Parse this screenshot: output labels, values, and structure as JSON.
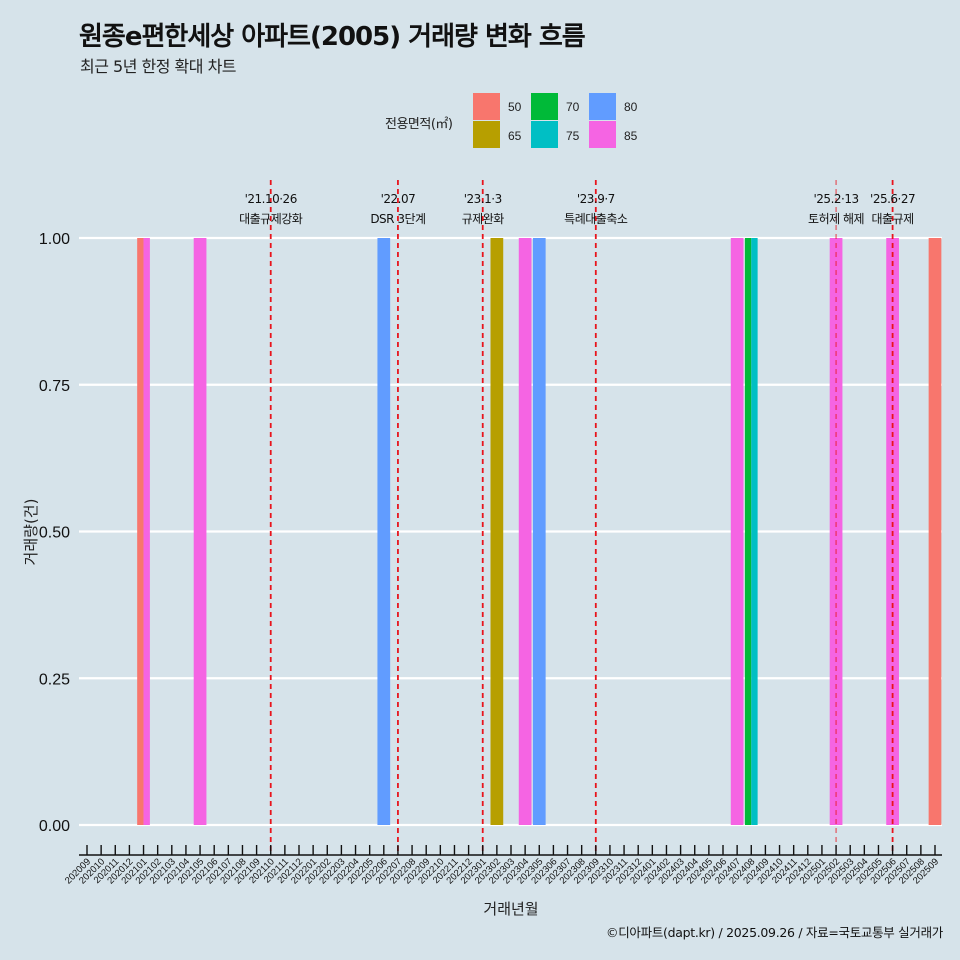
{
  "title": "원종e편한세상 아파트(2005) 거래량 변화 흐름",
  "subtitle": "최근 5년 한정 확대 차트",
  "caption": "©디아파트(dapt.kr) / 2025.09.26 / 자료=국토교통부 실거래가",
  "legend": {
    "title": "전용면적(㎡)",
    "items": [
      {
        "label": "50",
        "color": "#F8766D"
      },
      {
        "label": "65",
        "color": "#B79F00"
      },
      {
        "label": "70",
        "color": "#00BA38"
      },
      {
        "label": "75",
        "color": "#00BFC4"
      },
      {
        "label": "80",
        "color": "#619CFF"
      },
      {
        "label": "85",
        "color": "#F564E3"
      }
    ]
  },
  "chart_data": {
    "type": "bar",
    "title": "원종e편한세상 아파트(2005) 거래량 변화 흐름",
    "subtitle": "최근 5년 한정 확대 차트",
    "xlabel": "거래년월",
    "ylabel": "거래량(건)",
    "ylim": [
      0,
      1
    ],
    "yticks": [
      "0.00",
      "0.25",
      "0.50",
      "0.75",
      "1.00"
    ],
    "ytick_values": [
      0,
      0.25,
      0.5,
      0.75,
      1.0
    ],
    "grid": "horizontal",
    "legend_position": "top",
    "categories": [
      "202009",
      "202010",
      "202011",
      "202012",
      "202101",
      "202102",
      "202103",
      "202104",
      "202105",
      "202106",
      "202107",
      "202108",
      "202109",
      "202110",
      "202111",
      "202112",
      "202201",
      "202202",
      "202203",
      "202204",
      "202205",
      "202206",
      "202207",
      "202208",
      "202209",
      "202210",
      "202211",
      "202212",
      "202301",
      "202302",
      "202303",
      "202304",
      "202305",
      "202306",
      "202307",
      "202308",
      "202309",
      "202310",
      "202311",
      "202312",
      "202401",
      "202402",
      "202403",
      "202404",
      "202405",
      "202406",
      "202407",
      "202408",
      "202409",
      "202410",
      "202411",
      "202412",
      "202501",
      "202502",
      "202503",
      "202504",
      "202505",
      "202506",
      "202507",
      "202508",
      "202509"
    ],
    "bars": [
      {
        "month": "202101",
        "groups": [
          {
            "area": "50",
            "value": 1
          },
          {
            "area": "85",
            "value": 1
          }
        ]
      },
      {
        "month": "202105",
        "groups": [
          {
            "area": "85",
            "value": 1
          }
        ]
      },
      {
        "month": "202206",
        "groups": [
          {
            "area": "80",
            "value": 1
          }
        ]
      },
      {
        "month": "202302",
        "groups": [
          {
            "area": "65",
            "value": 1
          }
        ]
      },
      {
        "month": "202304",
        "groups": [
          {
            "area": "85",
            "value": 1
          }
        ]
      },
      {
        "month": "202305",
        "groups": [
          {
            "area": "80",
            "value": 1
          }
        ]
      },
      {
        "month": "202407",
        "groups": [
          {
            "area": "85",
            "value": 1
          }
        ]
      },
      {
        "month": "202408",
        "groups": [
          {
            "area": "70",
            "value": 1
          },
          {
            "area": "75",
            "value": 1
          }
        ]
      },
      {
        "month": "202502",
        "groups": [
          {
            "area": "85",
            "value": 1
          }
        ]
      },
      {
        "month": "202506",
        "groups": [
          {
            "area": "85",
            "value": 1
          }
        ]
      },
      {
        "month": "202509",
        "groups": [
          {
            "area": "50",
            "value": 1
          }
        ]
      }
    ],
    "annotations": [
      {
        "month": "202110",
        "date": "'21.10·26",
        "label": "대출규제강화",
        "style": "bold"
      },
      {
        "month": "202207",
        "date": "'22.07",
        "label": "DSR 3단계",
        "style": "bold"
      },
      {
        "month": "202301",
        "date": "'23.1·3",
        "label": "규제완화",
        "style": "bold"
      },
      {
        "month": "202309",
        "date": "'23.9·7",
        "label": "특례대출축소",
        "style": "bold"
      },
      {
        "month": "202502",
        "date": "'25.2·13",
        "label": "토허제 해제",
        "style": "light"
      },
      {
        "month": "202506",
        "date": "'25.6·27",
        "label": "대출규제",
        "style": "bold"
      }
    ],
    "annotation_color": "#E8141C"
  }
}
